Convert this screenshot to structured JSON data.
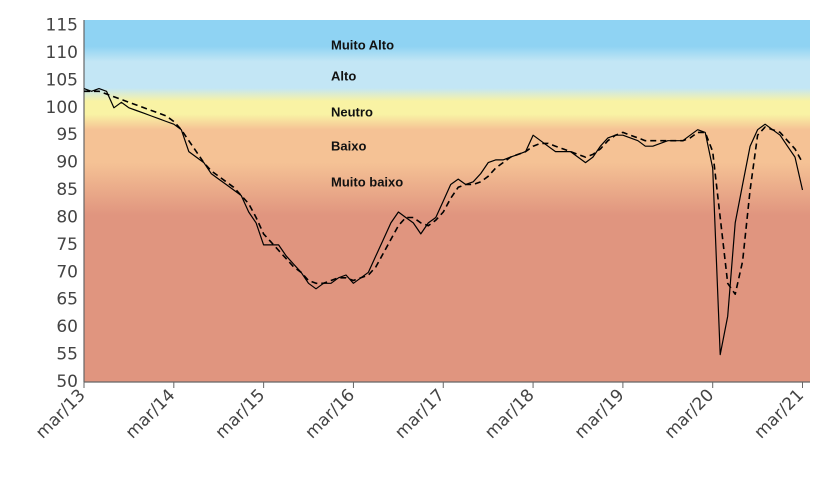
{
  "chart_data": {
    "type": "line",
    "title": "",
    "xlabel": "",
    "ylabel": "",
    "ylim": [
      50,
      116
    ],
    "yticks": [
      50,
      55,
      60,
      65,
      70,
      75,
      80,
      85,
      90,
      95,
      100,
      105,
      110,
      115
    ],
    "xlim": [
      0,
      97
    ],
    "xticks": [
      {
        "label": "mar/13",
        "x": 0
      },
      {
        "label": "mar/14",
        "x": 12
      },
      {
        "label": "mar/15",
        "x": 24
      },
      {
        "label": "mar/16",
        "x": 36
      },
      {
        "label": "mar/17",
        "x": 48
      },
      {
        "label": "mar/18",
        "x": 60
      },
      {
        "label": "mar/19",
        "x": 72
      },
      {
        "label": "mar/20",
        "x": 84
      },
      {
        "label": "mar/21",
        "x": 96
      }
    ],
    "bands": [
      {
        "label": "Muito Alto",
        "range": [
          110,
          116
        ],
        "color": "#8fd3f3"
      },
      {
        "label": "Alto",
        "range": [
          102,
          110
        ],
        "color": "#c3e6f5"
      },
      {
        "label": "Neutro",
        "range": [
          98,
          102
        ],
        "color": "#f9f3a4"
      },
      {
        "label": "Baixo",
        "range": [
          88,
          98
        ],
        "color": "#f5c295"
      },
      {
        "label": "Muito baixo",
        "range": [
          50,
          88
        ],
        "color": "#e0957f"
      }
    ],
    "series": [
      {
        "style": "solid",
        "points": [
          [
            0,
            103.5
          ],
          [
            1,
            103
          ],
          [
            2,
            103.5
          ],
          [
            3,
            103
          ],
          [
            4,
            100
          ],
          [
            5,
            101
          ],
          [
            6,
            100
          ],
          [
            7,
            99.5
          ],
          [
            8,
            99
          ],
          [
            9,
            98.5
          ],
          [
            10,
            98
          ],
          [
            11,
            97.5
          ],
          [
            12,
            97
          ],
          [
            13,
            96
          ],
          [
            14,
            92
          ],
          [
            15,
            91
          ],
          [
            16,
            90
          ],
          [
            17,
            88
          ],
          [
            18,
            87
          ],
          [
            19,
            86
          ],
          [
            20,
            85
          ],
          [
            21,
            84
          ],
          [
            22,
            81
          ],
          [
            23,
            79
          ],
          [
            24,
            75
          ],
          [
            25,
            75
          ],
          [
            26,
            75
          ],
          [
            27,
            73
          ],
          [
            28,
            71.5
          ],
          [
            29,
            70
          ],
          [
            30,
            68
          ],
          [
            31,
            67
          ],
          [
            32,
            68
          ],
          [
            33,
            68
          ],
          [
            34,
            69
          ],
          [
            35,
            69.5
          ],
          [
            36,
            68
          ],
          [
            37,
            69
          ],
          [
            38,
            70
          ],
          [
            39,
            73
          ],
          [
            40,
            76
          ],
          [
            41,
            79
          ],
          [
            42,
            81
          ],
          [
            43,
            80
          ],
          [
            44,
            79
          ],
          [
            45,
            77
          ],
          [
            46,
            79
          ],
          [
            47,
            80
          ],
          [
            48,
            83
          ],
          [
            49,
            86
          ],
          [
            50,
            87
          ],
          [
            51,
            86
          ],
          [
            52,
            86.5
          ],
          [
            53,
            88
          ],
          [
            54,
            90
          ],
          [
            55,
            90.5
          ],
          [
            56,
            90.5
          ],
          [
            57,
            91
          ],
          [
            58,
            91.5
          ],
          [
            59,
            92
          ],
          [
            60,
            95
          ],
          [
            61,
            94
          ],
          [
            62,
            93
          ],
          [
            63,
            92
          ],
          [
            64,
            92
          ],
          [
            65,
            92
          ],
          [
            66,
            91
          ],
          [
            67,
            90
          ],
          [
            68,
            91
          ],
          [
            69,
            93
          ],
          [
            70,
            94.5
          ],
          [
            71,
            95
          ],
          [
            72,
            95
          ],
          [
            73,
            94.5
          ],
          [
            74,
            94
          ],
          [
            75,
            93
          ],
          [
            76,
            93
          ],
          [
            77,
            93.5
          ],
          [
            78,
            94
          ],
          [
            79,
            94
          ],
          [
            80,
            94
          ],
          [
            81,
            95
          ],
          [
            82,
            96
          ],
          [
            83,
            95.5
          ],
          [
            84,
            89
          ],
          [
            85,
            55
          ],
          [
            86,
            62
          ],
          [
            87,
            79
          ],
          [
            88,
            86
          ],
          [
            89,
            93
          ],
          [
            90,
            96
          ],
          [
            91,
            97
          ],
          [
            92,
            96
          ],
          [
            93,
            95
          ],
          [
            94,
            93
          ],
          [
            95,
            91
          ],
          [
            96,
            85
          ]
        ]
      },
      {
        "style": "dashed",
        "points": [
          [
            0,
            103
          ],
          [
            1,
            103
          ],
          [
            2,
            103
          ],
          [
            3,
            102.5
          ],
          [
            4,
            102
          ],
          [
            5,
            101.5
          ],
          [
            6,
            101
          ],
          [
            7,
            100.5
          ],
          [
            8,
            100
          ],
          [
            9,
            99.5
          ],
          [
            10,
            99
          ],
          [
            11,
            98.5
          ],
          [
            12,
            97.5
          ],
          [
            13,
            96
          ],
          [
            14,
            94
          ],
          [
            15,
            92
          ],
          [
            16,
            90
          ],
          [
            17,
            88.5
          ],
          [
            18,
            87.5
          ],
          [
            19,
            86.5
          ],
          [
            20,
            85.5
          ],
          [
            21,
            84
          ],
          [
            22,
            82.5
          ],
          [
            23,
            80
          ],
          [
            24,
            77
          ],
          [
            25,
            75.5
          ],
          [
            26,
            74
          ],
          [
            27,
            72.5
          ],
          [
            28,
            71
          ],
          [
            29,
            70
          ],
          [
            30,
            68.5
          ],
          [
            31,
            68
          ],
          [
            32,
            68
          ],
          [
            33,
            68.5
          ],
          [
            34,
            69
          ],
          [
            35,
            69
          ],
          [
            36,
            68.5
          ],
          [
            37,
            69
          ],
          [
            38,
            69.5
          ],
          [
            39,
            71
          ],
          [
            40,
            73.5
          ],
          [
            41,
            76
          ],
          [
            42,
            78.5
          ],
          [
            43,
            80
          ],
          [
            44,
            80
          ],
          [
            45,
            79
          ],
          [
            46,
            78.5
          ],
          [
            47,
            79.5
          ],
          [
            48,
            81
          ],
          [
            49,
            83.5
          ],
          [
            50,
            85.5
          ],
          [
            51,
            86
          ],
          [
            52,
            86
          ],
          [
            53,
            86.5
          ],
          [
            54,
            87.5
          ],
          [
            55,
            89
          ],
          [
            56,
            90
          ],
          [
            57,
            91
          ],
          [
            58,
            91.5
          ],
          [
            59,
            92
          ],
          [
            60,
            93
          ],
          [
            61,
            93.5
          ],
          [
            62,
            93.5
          ],
          [
            63,
            93
          ],
          [
            64,
            92.5
          ],
          [
            65,
            92
          ],
          [
            66,
            91.5
          ],
          [
            67,
            91
          ],
          [
            68,
            91.5
          ],
          [
            69,
            92.5
          ],
          [
            70,
            94
          ],
          [
            71,
            95
          ],
          [
            72,
            95.5
          ],
          [
            73,
            95
          ],
          [
            74,
            94.5
          ],
          [
            75,
            94
          ],
          [
            76,
            94
          ],
          [
            77,
            94
          ],
          [
            78,
            94
          ],
          [
            79,
            94
          ],
          [
            80,
            94
          ],
          [
            81,
            94.5
          ],
          [
            82,
            95.5
          ],
          [
            83,
            95.5
          ],
          [
            84,
            92
          ],
          [
            85,
            80
          ],
          [
            86,
            68
          ],
          [
            87,
            66
          ],
          [
            88,
            72
          ],
          [
            89,
            85
          ],
          [
            90,
            95
          ],
          [
            91,
            96.5
          ],
          [
            92,
            96
          ],
          [
            93,
            95.5
          ],
          [
            94,
            94
          ],
          [
            95,
            92.5
          ],
          [
            96,
            90
          ]
        ]
      }
    ]
  }
}
